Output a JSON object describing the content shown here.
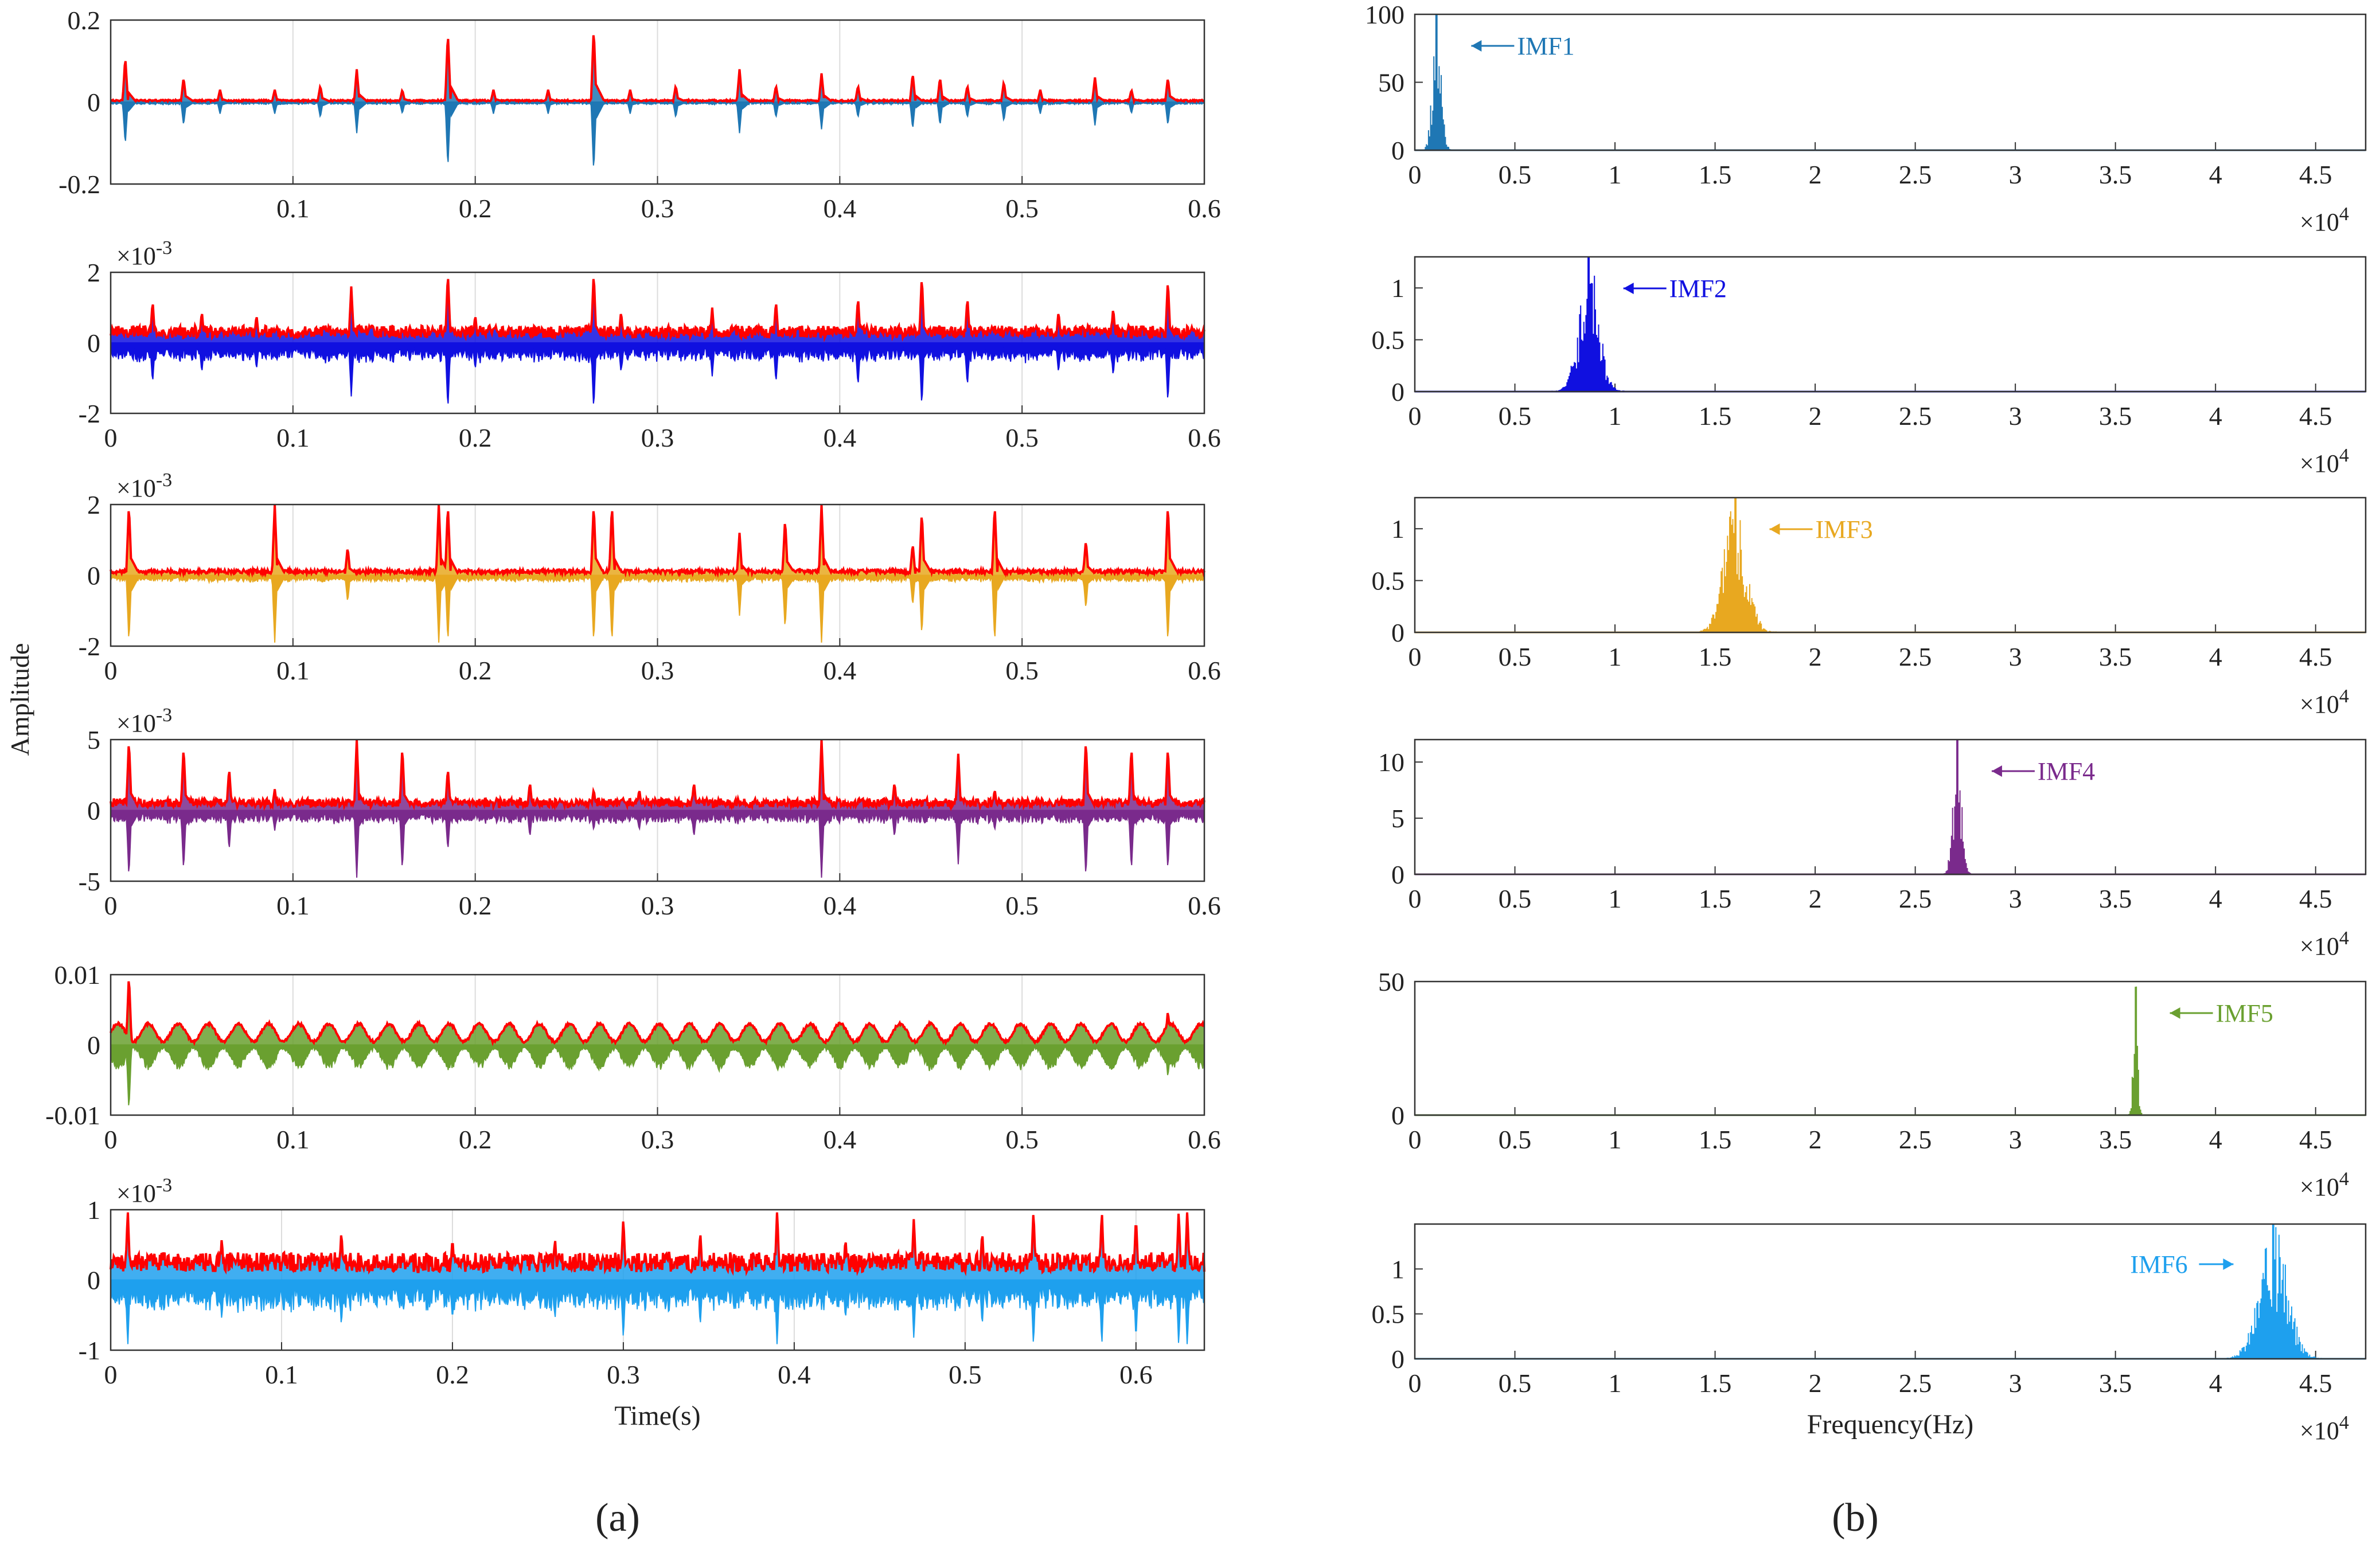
{
  "figure": {
    "panel_labels": [
      "(a)",
      "(b)"
    ],
    "time_axis_label": "Time(s)",
    "freq_axis_label": "Frequency(Hz)",
    "shared_ylabel": "Amplitude",
    "freq_exponent_base": "×10",
    "freq_exponent_power": "4",
    "y_exponent_base": "×10",
    "y_exponent_power": "-3",
    "envelope_color": "#ff0000"
  },
  "chart_data": [
    {
      "type": "line",
      "panel": "a",
      "row": 1,
      "series": [
        {
          "name": "IMF1",
          "color": "#1f77b4"
        }
      ],
      "x_range": [
        0.0,
        0.6
      ],
      "ylim": [
        -0.2,
        0.2
      ],
      "xticks": [
        "0.1",
        "0.2",
        "0.3",
        "0.4",
        "0.5",
        "0.6"
      ],
      "yticks": [
        "0.2",
        "0",
        "-0.2"
      ],
      "y_exponent": false,
      "xlabel": "",
      "spikes": [
        0.008,
        0.04,
        0.06,
        0.09,
        0.115,
        0.135,
        0.16,
        0.185,
        0.21,
        0.24,
        0.265,
        0.285,
        0.31,
        0.345,
        0.365,
        0.39,
        0.41,
        0.44,
        0.455,
        0.47,
        0.49,
        0.51,
        0.54,
        0.56,
        0.58
      ],
      "spike_peak": [
        0.11,
        0.06,
        0.03,
        0.03,
        0.04,
        0.08,
        0.03,
        0.17,
        0.03,
        0.03,
        0.18,
        0.03,
        0.04,
        0.08,
        0.04,
        0.07,
        0.04,
        0.07,
        0.06,
        0.04,
        0.05,
        0.03,
        0.06,
        0.03,
        0.06
      ],
      "noise": 0.004
    },
    {
      "type": "line",
      "panel": "a",
      "row": 2,
      "series": [
        {
          "name": "IMF2",
          "color": "#1010e0"
        }
      ],
      "x_range": [
        0.0,
        0.6
      ],
      "ylim": [
        -2,
        2
      ],
      "xticks": [
        "0",
        "0.1",
        "0.2",
        "0.3",
        "0.4",
        "0.5",
        "0.6"
      ],
      "yticks": [
        "2",
        "0",
        "-2"
      ],
      "y_exponent": true,
      "xlabel": "",
      "spikes": [
        0.023,
        0.05,
        0.08,
        0.132,
        0.185,
        0.2,
        0.265,
        0.28,
        0.33,
        0.365,
        0.41,
        0.445,
        0.47,
        0.52,
        0.55,
        0.58
      ],
      "spike_peak": [
        1.2,
        0.9,
        0.8,
        1.6,
        2.0,
        0.8,
        2.0,
        0.9,
        1.0,
        1.2,
        1.3,
        1.9,
        1.3,
        0.9,
        1.0,
        1.8
      ],
      "noise": 0.35
    },
    {
      "type": "line",
      "panel": "a",
      "row": 3,
      "series": [
        {
          "name": "IMF3",
          "color": "#e8a820"
        }
      ],
      "x_range": [
        0.0,
        0.6
      ],
      "ylim": [
        -2,
        2
      ],
      "xticks": [
        "0",
        "0.1",
        "0.2",
        "0.3",
        "0.4",
        "0.5",
        "0.6"
      ],
      "yticks": [
        "2",
        "0",
        "-2"
      ],
      "y_exponent": true,
      "xlabel": "",
      "spikes": [
        0.01,
        0.09,
        0.13,
        0.18,
        0.185,
        0.265,
        0.275,
        0.345,
        0.37,
        0.39,
        0.44,
        0.445,
        0.485,
        0.535,
        0.58
      ],
      "spike_peak": [
        2.0,
        2.0,
        0.8,
        2.0,
        2.0,
        2.0,
        2.0,
        1.2,
        1.6,
        2.0,
        0.9,
        1.8,
        2.0,
        1.0,
        2.0
      ],
      "noise": 0.12
    },
    {
      "type": "line",
      "panel": "a",
      "row": 4,
      "series": [
        {
          "name": "IMF4",
          "color": "#7a2a8c"
        }
      ],
      "x_range": [
        0.0,
        0.6
      ],
      "ylim": [
        -5,
        5
      ],
      "xticks": [
        "0",
        "0.1",
        "0.2",
        "0.3",
        "0.4",
        "0.5",
        "0.6"
      ],
      "yticks": [
        "5",
        "0",
        "-5"
      ],
      "y_exponent": true,
      "xlabel": "",
      "spikes": [
        0.01,
        0.04,
        0.065,
        0.09,
        0.135,
        0.16,
        0.185,
        0.23,
        0.265,
        0.29,
        0.32,
        0.39,
        0.43,
        0.465,
        0.485,
        0.535,
        0.56,
        0.58
      ],
      "spike_peak": [
        5,
        4.5,
        3,
        1.5,
        5,
        4.5,
        3,
        2,
        1.5,
        1.5,
        2,
        5,
        2,
        4,
        1.5,
        5,
        4.5,
        4.5
      ],
      "noise": 0.6
    },
    {
      "type": "line",
      "panel": "a",
      "row": 5,
      "series": [
        {
          "name": "IMF5",
          "color": "#6aa030"
        }
      ],
      "x_range": [
        0.0,
        0.6
      ],
      "ylim": [
        -0.01,
        0.01
      ],
      "xticks": [
        "0",
        "0.1",
        "0.2",
        "0.3",
        "0.4",
        "0.5",
        "0.6"
      ],
      "yticks": [
        "0.01",
        "0",
        "-0.01"
      ],
      "y_exponent": false,
      "xlabel": "",
      "periodic": true,
      "period": 0.0165,
      "amplitude": 0.0028,
      "spikes": [
        0.01,
        0.58
      ],
      "spike_peak": [
        0.01,
        0.005
      ],
      "noise": 0.0004
    },
    {
      "type": "line",
      "panel": "a",
      "row": 6,
      "series": [
        {
          "name": "IMF6",
          "color": "#1ea0ee"
        }
      ],
      "x_range": [
        0.0,
        0.64
      ],
      "ylim": [
        -1,
        1
      ],
      "xticks": [
        "0",
        "0.1",
        "0.2",
        "0.3",
        "0.4",
        "0.5",
        "0.6"
      ],
      "yticks": [
        "1",
        "0",
        "-1"
      ],
      "y_exponent": true,
      "xlabel": "Time(s)",
      "spikes": [
        0.01,
        0.065,
        0.135,
        0.2,
        0.26,
        0.3,
        0.345,
        0.39,
        0.43,
        0.47,
        0.51,
        0.54,
        0.58,
        0.6,
        0.625,
        0.63
      ],
      "spike_peak": [
        1,
        0.6,
        0.7,
        0.6,
        0.6,
        0.9,
        0.7,
        1,
        0.6,
        0.9,
        0.7,
        1,
        1,
        0.9,
        1,
        1
      ],
      "noise": 0.28
    },
    {
      "type": "area",
      "panel": "b",
      "row": 1,
      "series": [
        {
          "name": "IMF1",
          "color": "#1f77b4"
        }
      ],
      "x_range": [
        0,
        4.75
      ],
      "ylim": [
        0,
        100
      ],
      "xticks": [
        "0",
        "0.5",
        "1",
        "1.5",
        "2",
        "2.5",
        "3",
        "3.5",
        "4",
        "4.5"
      ],
      "yticks": [
        "100",
        "50",
        "0"
      ],
      "peak_center": 0.11,
      "peak_width": 0.03,
      "peak_height": 100,
      "annotation": "IMF1"
    },
    {
      "type": "area",
      "panel": "b",
      "row": 2,
      "series": [
        {
          "name": "IMF2",
          "color": "#1010e0"
        }
      ],
      "x_range": [
        0,
        4.75
      ],
      "ylim": [
        0,
        1.3
      ],
      "xticks": [
        "0",
        "0.5",
        "1",
        "1.5",
        "2",
        "2.5",
        "3",
        "3.5",
        "4",
        "4.5"
      ],
      "yticks": [
        "1",
        "0.5",
        "0"
      ],
      "peak_center": 0.87,
      "peak_width": 0.07,
      "peak_height": 1.3,
      "annotation": "IMF2"
    },
    {
      "type": "area",
      "panel": "b",
      "row": 3,
      "series": [
        {
          "name": "IMF3",
          "color": "#e8a820"
        }
      ],
      "x_range": [
        0,
        4.75
      ],
      "ylim": [
        0,
        1.3
      ],
      "xticks": [
        "0",
        "0.5",
        "1",
        "1.5",
        "2",
        "2.5",
        "3",
        "3.5",
        "4",
        "4.5"
      ],
      "yticks": [
        "1",
        "0.5",
        "0"
      ],
      "peak_center": 1.6,
      "peak_width": 0.08,
      "peak_height": 1.3,
      "annotation": "IMF3"
    },
    {
      "type": "area",
      "panel": "b",
      "row": 4,
      "series": [
        {
          "name": "IMF4",
          "color": "#7a2a8c"
        }
      ],
      "x_range": [
        0,
        4.75
      ],
      "ylim": [
        0,
        12
      ],
      "xticks": [
        "0",
        "0.5",
        "1",
        "1.5",
        "2",
        "2.5",
        "3",
        "3.5",
        "4",
        "4.5"
      ],
      "yticks": [
        "10",
        "5",
        "0"
      ],
      "peak_center": 2.71,
      "peak_width": 0.03,
      "peak_height": 12,
      "annotation": "IMF4"
    },
    {
      "type": "area",
      "panel": "b",
      "row": 5,
      "series": [
        {
          "name": "IMF5",
          "color": "#6aa030"
        }
      ],
      "x_range": [
        0,
        4.75
      ],
      "ylim": [
        0,
        50
      ],
      "xticks": [
        "0",
        "0.5",
        "1",
        "1.5",
        "2",
        "2.5",
        "3",
        "3.5",
        "4",
        "4.5"
      ],
      "yticks": [
        "50",
        "0"
      ],
      "peak_center": 3.6,
      "peak_width": 0.015,
      "peak_height": 48,
      "annotation": "IMF5"
    },
    {
      "type": "area",
      "panel": "b",
      "row": 6,
      "series": [
        {
          "name": "IMF6",
          "color": "#1ea0ee"
        }
      ],
      "x_range": [
        0,
        4.75
      ],
      "ylim": [
        0,
        1.5
      ],
      "xticks": [
        "0",
        "0.5",
        "1",
        "1.5",
        "2",
        "2.5",
        "3",
        "3.5",
        "4",
        "4.5"
      ],
      "yticks": [
        "1",
        "0.5",
        "0"
      ],
      "peak_center": 4.29,
      "peak_width": 0.1,
      "peak_height": 1.5,
      "annotation": "IMF6",
      "xlabel": "Frequency(Hz)"
    }
  ]
}
